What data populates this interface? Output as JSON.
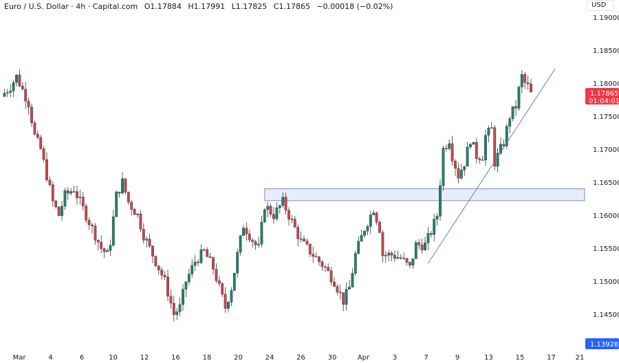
{
  "header": {
    "symbol": "Euro / U.S. Dollar · 4h · Capital.com",
    "open": "O1.17884",
    "high": "H1.17991",
    "low": "L1.17825",
    "close": "C1.17865",
    "change": "−0.00018 (−0.02%)"
  },
  "currency_button": "USD",
  "price_axis": {
    "ticks": [
      "1.19000",
      "1.18500",
      "1.18000",
      "1.17500",
      "1.17000",
      "1.16500",
      "1.16000",
      "1.15500",
      "1.15000",
      "1.14500"
    ],
    "tick_values": [
      1.19,
      1.185,
      1.18,
      1.175,
      1.17,
      1.165,
      1.16,
      1.155,
      1.15,
      1.145
    ],
    "last_price": "1.17865",
    "last_price_value": 1.17865,
    "countdown": "01:04:01",
    "marker_price": "1.13928",
    "marker_value": 1.13928
  },
  "time_axis": {
    "labels": [
      "Mar",
      "4",
      "6",
      "10",
      "12",
      "16",
      "18",
      "20",
      "24",
      "26",
      "30",
      "Apr",
      "3",
      "7",
      "9",
      "13",
      "15",
      "17",
      "21"
    ]
  },
  "colors": {
    "up": "#22806b",
    "down": "#c8464c",
    "last_price_bg": "#f23645",
    "marker_bg": "#2962ff",
    "zone_fill": "#e8edfa",
    "zone_border": "#7a8cc4",
    "trendline": "#5b7fc7"
  },
  "drawings": {
    "zone": {
      "top": 1.164,
      "bottom": 1.1622,
      "start_candle": 87
    },
    "trendline": {
      "from": [
        141,
        1.1527
      ],
      "to": [
        183,
        1.1822
      ]
    }
  },
  "price_path": [
    [
      0,
      1.178
    ],
    [
      3,
      1.1795
    ],
    [
      5,
      1.181
    ],
    [
      7,
      1.179
    ],
    [
      9,
      1.177
    ],
    [
      11,
      1.172
    ],
    [
      13,
      1.17
    ],
    [
      15,
      1.166
    ],
    [
      17,
      1.162
    ],
    [
      19,
      1.16
    ],
    [
      21,
      1.163
    ],
    [
      24,
      1.164
    ],
    [
      26,
      1.162
    ],
    [
      28,
      1.16
    ],
    [
      31,
      1.157
    ],
    [
      33,
      1.155
    ],
    [
      35,
      1.154
    ],
    [
      36,
      1.156
    ],
    [
      38,
      1.163
    ],
    [
      40,
      1.165
    ],
    [
      42,
      1.162
    ],
    [
      45,
      1.16
    ],
    [
      47,
      1.157
    ],
    [
      51,
      1.153
    ],
    [
      54,
      1.15
    ],
    [
      57,
      1.145
    ],
    [
      59,
      1.146
    ],
    [
      61,
      1.15
    ],
    [
      64,
      1.153
    ],
    [
      67,
      1.1545
    ],
    [
      70,
      1.152
    ],
    [
      72,
      1.149
    ],
    [
      74,
      1.146
    ],
    [
      76,
      1.149
    ],
    [
      78,
      1.154
    ],
    [
      80,
      1.1585
    ],
    [
      82,
      1.157
    ],
    [
      84,
      1.1555
    ],
    [
      85,
      1.155
    ],
    [
      87,
      1.1615
    ],
    [
      90,
      1.16
    ],
    [
      93,
      1.162
    ],
    [
      96,
      1.159
    ],
    [
      99,
      1.156
    ],
    [
      103,
      1.154
    ],
    [
      107,
      1.152
    ],
    [
      110,
      1.15
    ],
    [
      113,
      1.147
    ],
    [
      115,
      1.149
    ],
    [
      117,
      1.154
    ],
    [
      120,
      1.158
    ],
    [
      123,
      1.161
    ],
    [
      125,
      1.158
    ],
    [
      126,
      1.154
    ],
    [
      129,
      1.154
    ],
    [
      132,
      1.1535
    ],
    [
      135,
      1.152
    ],
    [
      137,
      1.1555
    ],
    [
      140,
      1.1555
    ],
    [
      142,
      1.1575
    ],
    [
      144,
      1.16
    ],
    [
      146,
      1.17
    ],
    [
      148,
      1.1715
    ],
    [
      149,
      1.169
    ],
    [
      151,
      1.166
    ],
    [
      153,
      1.168
    ],
    [
      155,
      1.1715
    ],
    [
      157,
      1.169
    ],
    [
      159,
      1.169
    ],
    [
      160,
      1.172
    ],
    [
      162,
      1.173
    ],
    [
      163,
      1.168
    ],
    [
      165,
      1.17
    ],
    [
      166,
      1.171
    ],
    [
      168,
      1.175
    ],
    [
      170,
      1.1765
    ],
    [
      171,
      1.179
    ],
    [
      172,
      1.181
    ],
    [
      173,
      1.18
    ],
    [
      174,
      1.1795
    ],
    [
      175,
      1.17865
    ]
  ]
}
